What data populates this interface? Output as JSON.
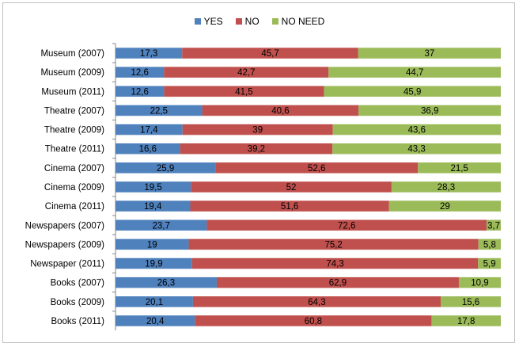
{
  "chart_data": {
    "type": "bar",
    "orientation": "horizontal",
    "stacked": true,
    "percent_stacked": true,
    "categories": [
      "Museum (2007)",
      "Museum (2009)",
      "Museum (2011)",
      "Theatre (2007)",
      "Theatre (2009)",
      "Theatre (2011)",
      "Cinema (2007)",
      "Cinema (2009)",
      "Cinema (2011)",
      "Newspapers (2007)",
      "Newspapers (2009)",
      "Newspaper (2011)",
      "Books (2007)",
      "Books (2009)",
      "Books (2011)"
    ],
    "series": [
      {
        "name": "YES",
        "color": "#4f81bd",
        "values": [
          17.3,
          12.6,
          12.6,
          22.5,
          17.4,
          16.6,
          25.9,
          19.5,
          19.4,
          23.7,
          19,
          19.9,
          26.3,
          20.1,
          20.4
        ],
        "labels": [
          "17,3",
          "12,6",
          "12,6",
          "22,5",
          "17,4",
          "16,6",
          "25,9",
          "19,5",
          "19,4",
          "23,7",
          "19",
          "19,9",
          "26,3",
          "20,1",
          "20,4"
        ]
      },
      {
        "name": "NO",
        "color": "#c0504d",
        "values": [
          45.7,
          42.7,
          41.5,
          40.6,
          39,
          39.2,
          52.6,
          52,
          51.6,
          72.6,
          75.2,
          74.3,
          62.9,
          64.3,
          60.8
        ],
        "labels": [
          "45,7",
          "42,7",
          "41,5",
          "40,6",
          "39",
          "39,2",
          "52,6",
          "52",
          "51,6",
          "72,6",
          "75,2",
          "74,3",
          "62,9",
          "64,3",
          "60,8"
        ]
      },
      {
        "name": "NO NEED",
        "color": "#9bbb59",
        "values": [
          37,
          44.7,
          45.9,
          36.9,
          43.6,
          43.3,
          21.5,
          28.3,
          29,
          3.7,
          5.8,
          5.9,
          10.9,
          15.6,
          17.8
        ],
        "labels": [
          "37",
          "44,7",
          "45,9",
          "36,9",
          "43,6",
          "43,3",
          "21,5",
          "28,3",
          "29",
          "3,7",
          "5,8",
          "5,9",
          "10,9",
          "15,6",
          "17,8"
        ]
      }
    ],
    "legend": "top-center",
    "grid": false
  }
}
